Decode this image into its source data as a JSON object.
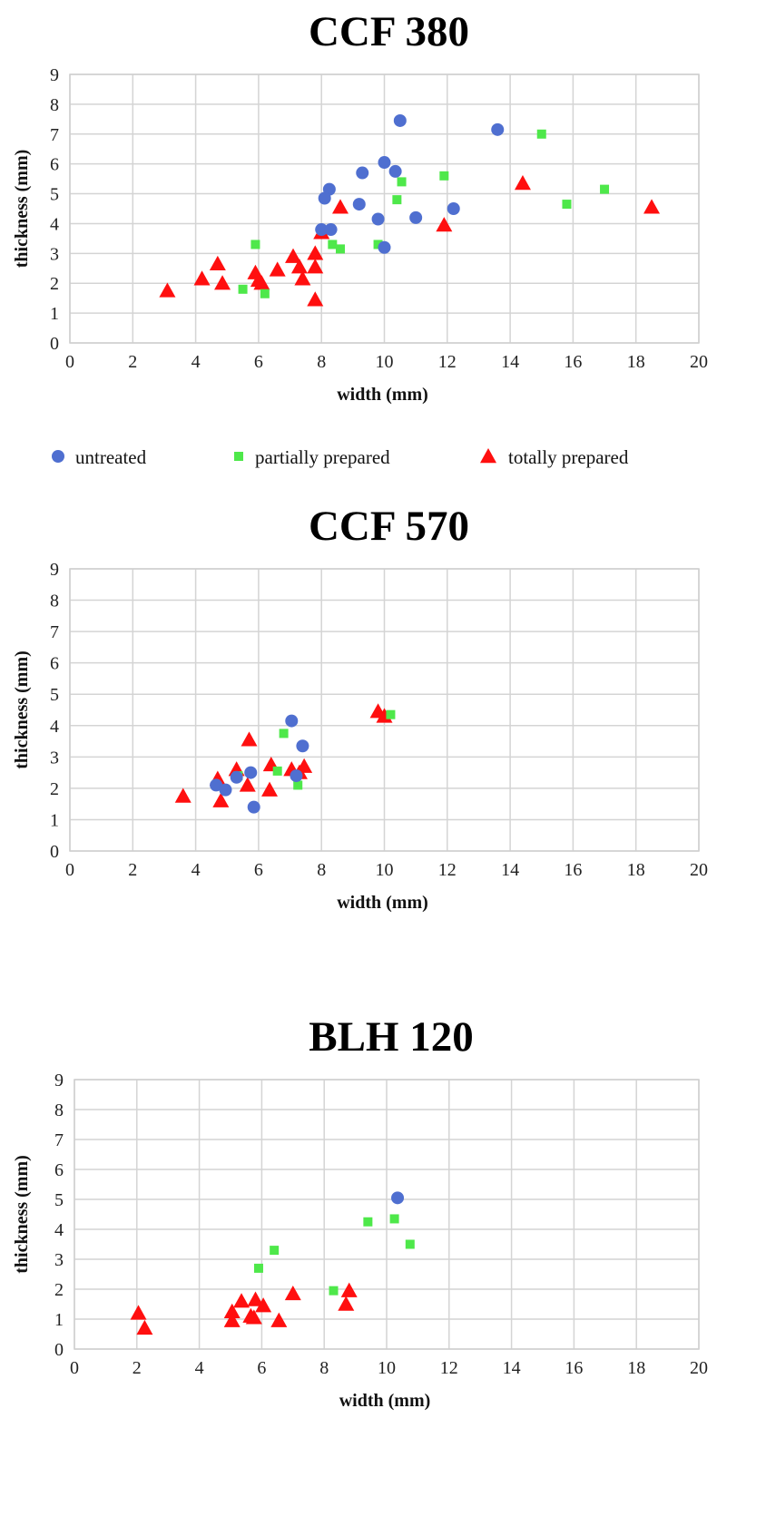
{
  "legend": [
    {
      "key": "untreated",
      "label": "untreated",
      "marker": "circle",
      "color": "#4f6fd0"
    },
    {
      "key": "partial",
      "label": "partially prepared",
      "marker": "square",
      "color": "#4ee84a"
    },
    {
      "key": "total",
      "label": "totally prepared",
      "marker": "triangle",
      "color": "#ff0f0f"
    }
  ],
  "chart_data": [
    {
      "type": "scatter",
      "title": "CCF 380",
      "xlabel": "width (mm)",
      "ylabel": "thickness (mm)",
      "xlim": [
        0,
        20
      ],
      "ylim": [
        0,
        9
      ],
      "xticks": [
        "0",
        "2",
        "4",
        "6",
        "8",
        "10",
        "12",
        "14",
        "16",
        "18",
        "20"
      ],
      "yticks": [
        "0",
        "1",
        "2",
        "3",
        "4",
        "5",
        "6",
        "7",
        "8",
        "9"
      ],
      "grid": true,
      "legend_position": "bottom",
      "series": [
        {
          "name": "untreated",
          "points": [
            [
              10.5,
              7.45
            ],
            [
              13.6,
              7.15
            ],
            [
              10,
              6.05
            ],
            [
              10.35,
              5.75
            ],
            [
              9.3,
              5.7
            ],
            [
              8.25,
              5.15
            ],
            [
              8.1,
              4.85
            ],
            [
              9.2,
              4.65
            ],
            [
              12.2,
              4.5
            ],
            [
              11,
              4.2
            ],
            [
              9.8,
              4.15
            ],
            [
              8,
              3.8
            ],
            [
              8.3,
              3.8
            ],
            [
              10,
              3.2
            ]
          ]
        },
        {
          "name": "partially prepared",
          "points": [
            [
              15,
              7
            ],
            [
              11.9,
              5.6
            ],
            [
              10.55,
              5.4
            ],
            [
              17,
              5.15
            ],
            [
              10.4,
              4.8
            ],
            [
              15.8,
              4.65
            ],
            [
              5.9,
              3.3
            ],
            [
              8.35,
              3.3
            ],
            [
              9.8,
              3.3
            ],
            [
              8.6,
              3.15
            ],
            [
              5.5,
              1.8
            ],
            [
              6.2,
              1.65
            ]
          ]
        },
        {
          "name": "totally prepared",
          "points": [
            [
              14.4,
              5.35
            ],
            [
              18.5,
              4.55
            ],
            [
              8.6,
              4.55
            ],
            [
              11.9,
              3.95
            ],
            [
              8,
              3.7
            ],
            [
              7.1,
              2.9
            ],
            [
              7.8,
              3
            ],
            [
              7.8,
              2.55
            ],
            [
              7.3,
              2.55
            ],
            [
              4.7,
              2.65
            ],
            [
              6.6,
              2.45
            ],
            [
              5.9,
              2.35
            ],
            [
              7.4,
              2.15
            ],
            [
              4.2,
              2.15
            ],
            [
              6,
              2.1
            ],
            [
              6.1,
              2
            ],
            [
              4.85,
              2
            ],
            [
              3.1,
              1.75
            ],
            [
              7.8,
              1.45
            ]
          ]
        }
      ]
    },
    {
      "type": "scatter",
      "title": "CCF 570",
      "xlabel": "width (mm)",
      "ylabel": "thickness (mm)",
      "xlim": [
        0,
        20
      ],
      "ylim": [
        0,
        9
      ],
      "xticks": [
        "0",
        "2",
        "4",
        "6",
        "8",
        "10",
        "12",
        "14",
        "16",
        "18",
        "20"
      ],
      "yticks": [
        "0",
        "1",
        "2",
        "3",
        "4",
        "5",
        "6",
        "7",
        "8",
        "9"
      ],
      "grid": true,
      "series": [
        {
          "name": "untreated",
          "points": [
            [
              7.05,
              4.15
            ],
            [
              7.4,
              3.35
            ],
            [
              5.75,
              2.5
            ],
            [
              4.65,
              2.1
            ],
            [
              4.95,
              1.95
            ],
            [
              5.3,
              2.35
            ],
            [
              7.2,
              2.4
            ],
            [
              5.85,
              1.4
            ]
          ]
        },
        {
          "name": "partially prepared",
          "points": [
            [
              10.2,
              4.35
            ],
            [
              6.8,
              3.75
            ],
            [
              6.6,
              2.55
            ],
            [
              7.25,
              2.1
            ],
            [
              5.35,
              2.4
            ]
          ]
        },
        {
          "name": "totally prepared",
          "points": [
            [
              9.8,
              4.45
            ],
            [
              10,
              4.3
            ],
            [
              5.7,
              3.55
            ],
            [
              6.4,
              2.75
            ],
            [
              7.45,
              2.7
            ],
            [
              7.05,
              2.6
            ],
            [
              5.3,
              2.6
            ],
            [
              7.3,
              2.5
            ],
            [
              4.7,
              2.3
            ],
            [
              5.65,
              2.1
            ],
            [
              6.35,
              1.95
            ],
            [
              3.6,
              1.75
            ],
            [
              4.8,
              1.6
            ]
          ]
        }
      ]
    },
    {
      "type": "scatter",
      "title": "BLH 120",
      "xlabel": "width (mm)",
      "ylabel": "thickness (mm)",
      "xlim": [
        0,
        20
      ],
      "ylim": [
        0,
        9
      ],
      "xticks": [
        "0",
        "2",
        "4",
        "6",
        "8",
        "10",
        "12",
        "14",
        "16",
        "18",
        "20"
      ],
      "yticks": [
        "0",
        "1",
        "2",
        "3",
        "4",
        "5",
        "6",
        "7",
        "8",
        "9"
      ],
      "grid": true,
      "series": [
        {
          "name": "untreated",
          "points": [
            [
              10.35,
              5.05
            ]
          ]
        },
        {
          "name": "partially prepared",
          "points": [
            [
              10.25,
              4.35
            ],
            [
              9.4,
              4.25
            ],
            [
              10.75,
              3.5
            ],
            [
              6.4,
              3.3
            ],
            [
              5.9,
              2.7
            ],
            [
              8.3,
              1.95
            ]
          ]
        },
        {
          "name": "totally prepared",
          "points": [
            [
              8.8,
              1.95
            ],
            [
              7,
              1.85
            ],
            [
              5.8,
              1.65
            ],
            [
              5.35,
              1.6
            ],
            [
              6.05,
              1.45
            ],
            [
              8.7,
              1.5
            ],
            [
              5.05,
              1.25
            ],
            [
              2.05,
              1.2
            ],
            [
              5.65,
              1.1
            ],
            [
              5.75,
              1.05
            ],
            [
              5.05,
              0.95
            ],
            [
              6.55,
              0.95
            ],
            [
              2.25,
              0.7
            ]
          ]
        }
      ]
    }
  ]
}
